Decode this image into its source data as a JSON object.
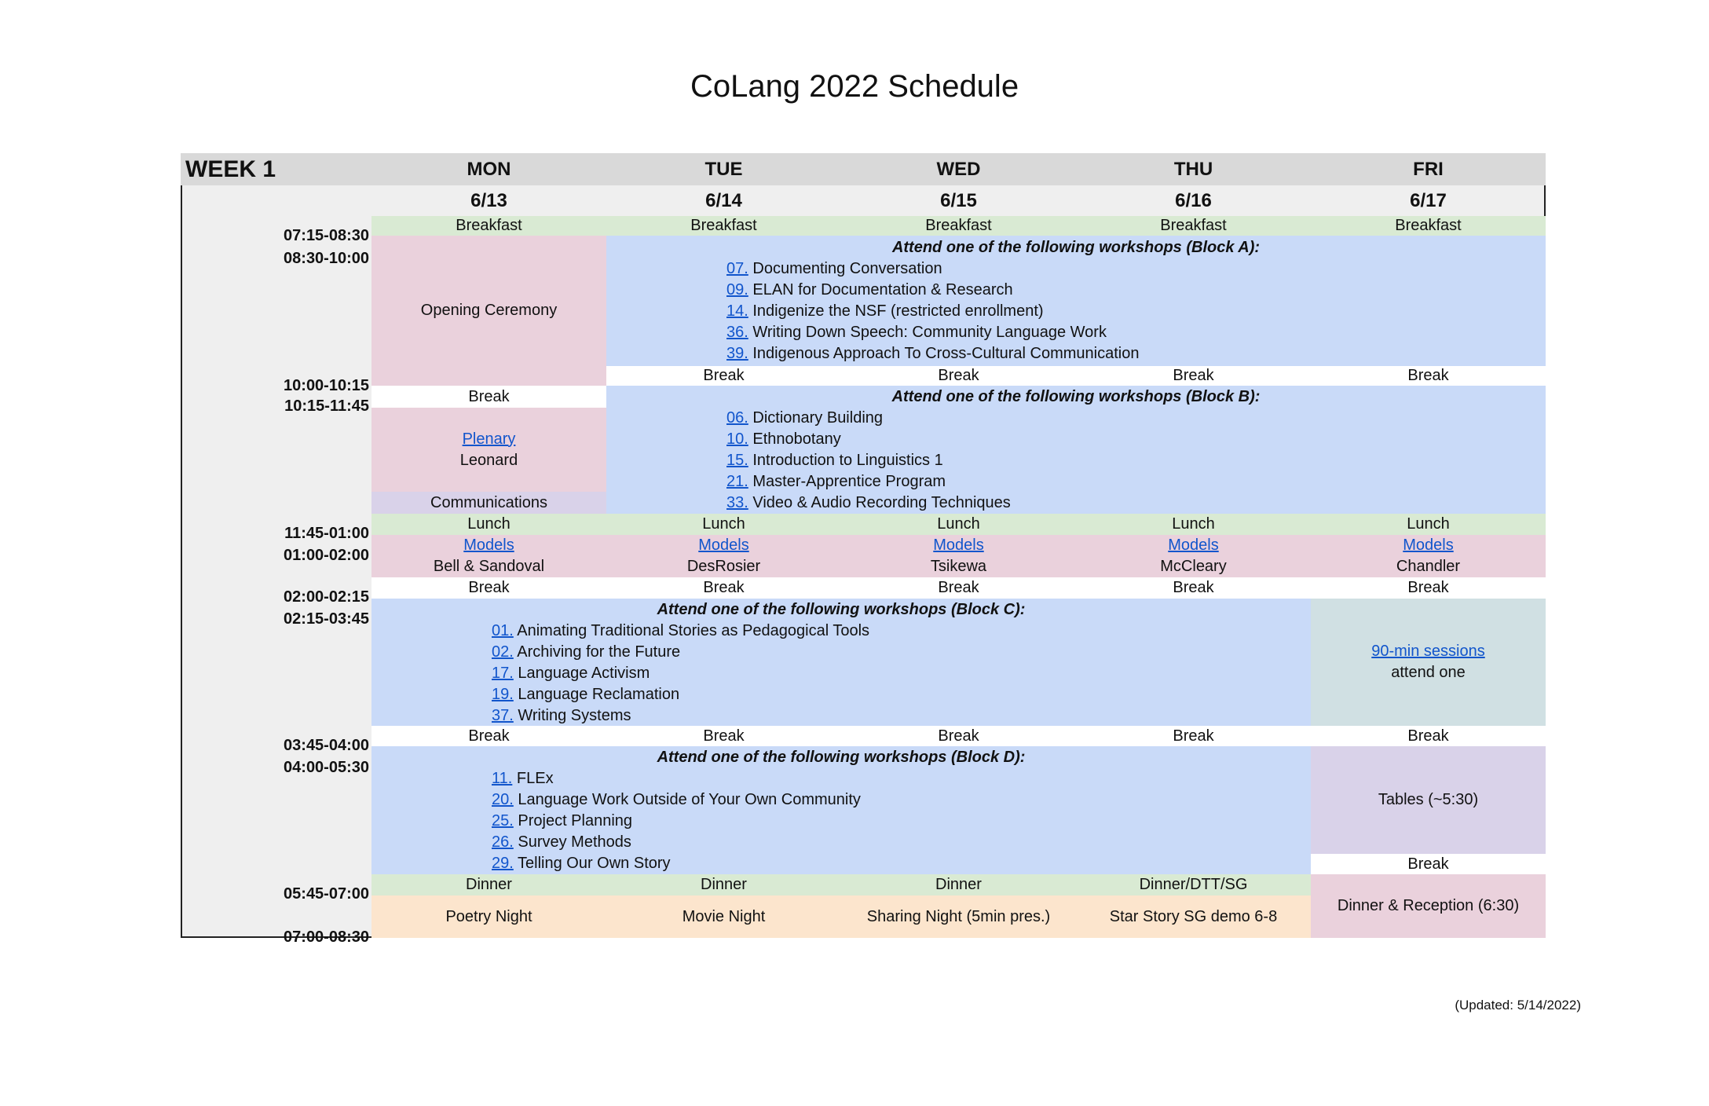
{
  "title": "CoLang 2022 Schedule",
  "week": "WEEK 1",
  "days": [
    {
      "name": "MON",
      "date": "6/13"
    },
    {
      "name": "TUE",
      "date": "6/14"
    },
    {
      "name": "WED",
      "date": "6/15"
    },
    {
      "name": "THU",
      "date": "6/16"
    },
    {
      "name": "FRI",
      "date": "6/17"
    }
  ],
  "times": [
    "07:15-08:30",
    "08:30-10:00",
    "10:00-10:15",
    "10:15-11:45",
    "11:45-01:00",
    "01:00-02:00",
    "02:00-02:15",
    "02:15-03:45",
    "03:45-04:00",
    "04:00-05:30",
    "05:45-07:00",
    "07:00-08:30"
  ],
  "breakfast": "Breakfast",
  "break": "Break",
  "lunch": "Lunch",
  "dinner": "Dinner",
  "mon": {
    "opening": "Opening Ceremony",
    "plenary": "Plenary",
    "plenary_speaker": "Leonard",
    "communications": "Communications"
  },
  "models": {
    "label": "Models",
    "speakers": [
      "Bell & Sandoval",
      "DesRosier",
      "Tsikewa",
      "McCleary",
      "Chandler"
    ]
  },
  "blockA": {
    "heading": "Attend one of the following workshops (Block A):",
    "items": [
      {
        "num": "07.",
        "title": "Documenting Conversation"
      },
      {
        "num": "09.",
        "title": "ELAN for Documentation & Research"
      },
      {
        "num": "14.",
        "title": "Indigenize the NSF (restricted enrollment)"
      },
      {
        "num": "36.",
        "title": "Writing Down Speech: Community Language Work"
      },
      {
        "num": "39.",
        "title": "Indigenous Approach To Cross-Cultural Communication"
      }
    ]
  },
  "blockB": {
    "heading": "Attend one of the following workshops (Block B):",
    "items": [
      {
        "num": "06.",
        "title": "Dictionary Building"
      },
      {
        "num": "10.",
        "title": "Ethnobotany"
      },
      {
        "num": "15.",
        "title": "Introduction to Linguistics 1"
      },
      {
        "num": "21.",
        "title": "Master-Apprentice Program"
      },
      {
        "num": "33.",
        "title": "Video & Audio Recording Techniques"
      }
    ]
  },
  "blockC": {
    "heading": "Attend one of the following workshops (Block C):",
    "items": [
      {
        "num": "01.",
        "title": "Animating Traditional Stories as Pedagogical Tools"
      },
      {
        "num": "02.",
        "title": "Archiving for the Future"
      },
      {
        "num": "17.",
        "title": "Language Activism"
      },
      {
        "num": "19.",
        "title": "Language Reclamation"
      },
      {
        "num": "37.",
        "title": "Writing Systems"
      }
    ]
  },
  "blockD": {
    "heading": "Attend one of the following workshops (Block D):",
    "items": [
      {
        "num": "11.",
        "title": "FLEx"
      },
      {
        "num": "20.",
        "title": "Language Work Outside of Your Own Community"
      },
      {
        "num": "25.",
        "title": "Project Planning"
      },
      {
        "num": "26.",
        "title": "Survey Methods"
      },
      {
        "num": "29.",
        "title": "Telling Our Own Story"
      }
    ]
  },
  "fri": {
    "sessions_link": "90-min sessions",
    "sessions_note": "attend one",
    "tables": "Tables (~5:30)",
    "dinner_reception": "Dinner & Reception (6:30)"
  },
  "thu_dinner": "Dinner/DTT/SG",
  "nights": [
    "Poetry Night",
    "Movie Night",
    "Sharing Night (5min pres.)",
    "Star Story SG demo 6-8"
  ],
  "updated": "(Updated: 5/14/2022)",
  "colors": {
    "meal": "#d9ead3",
    "plenary": "#ead1dc",
    "workshop": "#c9daf8",
    "link": "#1155cc",
    "evening": "#fce5cd",
    "tables": "#d9d2e9",
    "sessions": "#d0e0e3",
    "header": "#d9d9d9"
  }
}
